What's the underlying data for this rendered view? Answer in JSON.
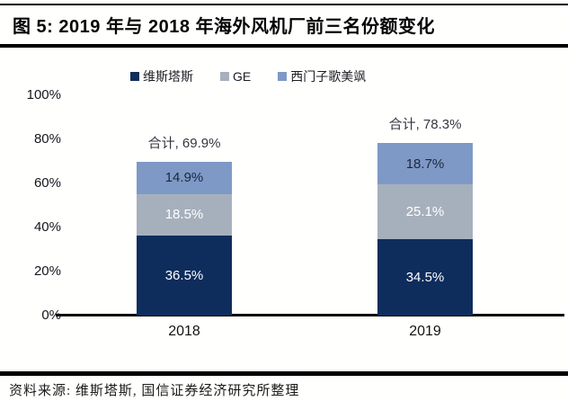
{
  "header": {
    "title": "图 5: 2019 年与 2018 年海外风机厂前三名份额变化"
  },
  "footer": {
    "source": "资料来源: 维斯塔斯, 国信证券经济研究所整理"
  },
  "colors": {
    "vestas_navy": "#0e2d5c",
    "ge_gray": "#a6b0bd",
    "siemens_blue": "#7e99c5",
    "axis_text": "#15151d",
    "total_label_text": "#33373f",
    "rule_black": "#000000"
  },
  "chart_data": {
    "type": "bar",
    "stacked": true,
    "title": "",
    "xlabel": "",
    "ylabel": "",
    "ylim": [
      0,
      100
    ],
    "grid": false,
    "legend_position": "top",
    "categories": [
      "2018",
      "2019"
    ],
    "series": [
      {
        "name": "维斯塔斯",
        "color": "#0e2d5c",
        "label_color": "#ffffff",
        "values": [
          36.5,
          34.5
        ]
      },
      {
        "name": "GE",
        "color": "#a6b0bd",
        "label_color": "#ffffff",
        "values": [
          18.5,
          25.1
        ]
      },
      {
        "name": "西门子歌美飒",
        "color": "#7e99c5",
        "label_color": "#1b2740",
        "values": [
          14.9,
          18.7
        ]
      }
    ],
    "segment_labels": [
      [
        "36.5%",
        "34.5%"
      ],
      [
        "18.5%",
        "25.1%"
      ],
      [
        "14.9%",
        "18.7%"
      ]
    ],
    "totals": [
      {
        "category": "2018",
        "value": 69.9,
        "label": "合计, 69.9%"
      },
      {
        "category": "2019",
        "value": 78.3,
        "label": "合计, 78.3%"
      }
    ],
    "yticks": [
      {
        "value": 100,
        "label": "100%"
      },
      {
        "value": 80,
        "label": "80%"
      },
      {
        "value": 60,
        "label": "60%"
      },
      {
        "value": 40,
        "label": "40%"
      },
      {
        "value": 20,
        "label": "20%"
      },
      {
        "value": 0,
        "label": "0%"
      }
    ]
  }
}
